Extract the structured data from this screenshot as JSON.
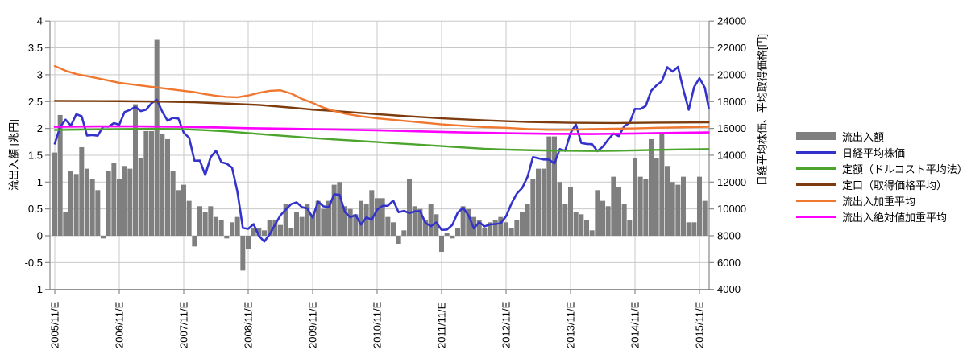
{
  "chart_data": {
    "type": "bar+line combo",
    "title": "",
    "left_axis": {
      "label": "流出入額 [兆円]",
      "min": -1,
      "max": 4,
      "tick_step": 0.5,
      "tick_labels": [
        "4",
        "3.5",
        "3",
        "2.5",
        "2",
        "1.5",
        "1",
        "0.5",
        "0",
        "-0.5",
        "-1"
      ]
    },
    "right_axis": {
      "label": "日経平均株価、平均取得価格[円]",
      "min": 4000,
      "max": 24000,
      "tick_step": 2000,
      "tick_labels": [
        "24000",
        "22000",
        "20000",
        "18000",
        "16000",
        "14000",
        "12000",
        "10000",
        "8000",
        "6000",
        "4000"
      ]
    },
    "x_axis": {
      "tick_labels": [
        "2005/11/E",
        "2006/11/E",
        "2007/11/E",
        "2008/11/E",
        "2009/11/E",
        "2010/11/E",
        "2011/11/E",
        "2012/11/E",
        "2013/11/E",
        "2014/11/E",
        "2015/11/E"
      ],
      "tick_month_indices": [
        0,
        12,
        24,
        36,
        48,
        60,
        72,
        84,
        96,
        108,
        120
      ],
      "months_per_tick": 12
    },
    "grid_on": true,
    "legend_position": "right",
    "legend": [
      {
        "label": "流出入額",
        "swatch": "bar",
        "color": "#7F7F7F"
      },
      {
        "label": "日経平均株価",
        "swatch": "line",
        "color": "#3333CC"
      },
      {
        "label": "定額（ドルコスト平均法）",
        "swatch": "line",
        "color": "#4CA42C"
      },
      {
        "label": "定口（取得価格平均）",
        "swatch": "line",
        "color": "#7D3C0E"
      },
      {
        "label": "流出入加重平均",
        "swatch": "line",
        "color": "#F0772F"
      },
      {
        "label": "流出入絶対値加重平均",
        "swatch": "line",
        "color": "#FF00FF"
      }
    ],
    "bar_series": {
      "name": "流出入額",
      "axis": "left",
      "unit": "兆円",
      "color": "#7F7F7F",
      "values": [
        1.55,
        2.25,
        0.45,
        1.2,
        1.15,
        1.65,
        1.25,
        1.05,
        0.85,
        -0.05,
        1.2,
        1.35,
        1.05,
        1.3,
        1.25,
        2.45,
        1.45,
        1.95,
        1.95,
        3.65,
        1.9,
        1.8,
        1.2,
        0.85,
        0.95,
        0.65,
        -0.2,
        0.55,
        0.45,
        0.55,
        0.35,
        0.3,
        -0.05,
        0.25,
        0.35,
        -0.65,
        -0.25,
        0.15,
        0.15,
        0.1,
        0.3,
        0.3,
        0.2,
        0.6,
        0.15,
        0.45,
        0.35,
        0.6,
        0.4,
        0.65,
        0.5,
        0.65,
        0.95,
        1.0,
        0.55,
        0.5,
        0.4,
        0.65,
        0.6,
        0.85,
        0.7,
        0.7,
        0.35,
        0.25,
        -0.15,
        0.1,
        1.05,
        0.55,
        0.5,
        0.3,
        0.6,
        0.4,
        -0.3,
        0.05,
        -0.05,
        0.15,
        0.55,
        0.5,
        0.35,
        0.3,
        0.15,
        0.25,
        0.3,
        0.35,
        0.25,
        0.15,
        0.3,
        0.45,
        0.6,
        1.05,
        1.25,
        1.25,
        1.85,
        1.85,
        1.0,
        0.6,
        0.9,
        0.45,
        0.4,
        0.3,
        0.1,
        0.85,
        0.65,
        0.55,
        1.1,
        0.9,
        0.6,
        0.3,
        1.45,
        1.1,
        1.05,
        1.8,
        1.45,
        1.9,
        1.3,
        1.0,
        0.95,
        1.1,
        0.25,
        0.25,
        1.1,
        0.65
      ]
    },
    "line_series": [
      {
        "name": "日経平均株価",
        "axis": "right",
        "color": "#3333CC",
        "width": 2.6,
        "values": [
          14872,
          16111,
          16649,
          16205,
          17060,
          16906,
          15467,
          15505,
          15457,
          16141,
          16128,
          16399,
          16274,
          17226,
          17383,
          17604,
          17288,
          17400,
          17876,
          18138,
          17249,
          16569,
          16786,
          16738,
          15681,
          15308,
          13592,
          13603,
          12526,
          13850,
          14339,
          13481,
          13377,
          13073,
          11260,
          8577,
          8512,
          8860,
          7994,
          7568,
          8110,
          8828,
          9523,
          9958,
          10357,
          10493,
          10133,
          10035,
          9346,
          10546,
          10198,
          10126,
          11090,
          11057,
          9769,
          9383,
          9537,
          8824,
          9369,
          9202,
          9937,
          10229,
          10238,
          10624,
          9755,
          9850,
          9694,
          9816,
          9833,
          8955,
          8700,
          8988,
          8435,
          8455,
          8803,
          9723,
          10084,
          9521,
          8543,
          9007,
          8695,
          8840,
          8870,
          8928,
          9446,
          10395,
          11139,
          11559,
          12398,
          13861,
          13775,
          13677,
          13668,
          13389,
          14456,
          14328,
          15662,
          16291,
          14915,
          14841,
          14828,
          14304,
          14632,
          15162,
          15621,
          15425,
          16174,
          16414,
          17460,
          17451,
          17674,
          18798,
          19207,
          19520,
          20563,
          20236,
          20585,
          18890,
          17388,
          19083,
          19747,
          19034,
          17518
        ]
      },
      {
        "name": "定額（ドルコスト平均法）",
        "axis": "right",
        "color": "#4CA42C",
        "width": 2.4,
        "months": [
          0,
          6,
          12,
          18,
          24,
          28,
          32,
          36,
          40,
          44,
          48,
          52,
          56,
          60,
          64,
          68,
          72,
          76,
          80,
          84,
          88,
          92,
          96,
          100,
          104,
          108,
          112,
          116,
          122
        ],
        "values": [
          15880,
          15920,
          15950,
          15970,
          15940,
          15870,
          15780,
          15650,
          15520,
          15400,
          15280,
          15180,
          15080,
          14980,
          14880,
          14780,
          14680,
          14580,
          14480,
          14420,
          14380,
          14350,
          14330,
          14320,
          14330,
          14360,
          14400,
          14430,
          14460
        ]
      },
      {
        "name": "定口（取得価格平均）",
        "axis": "right",
        "color": "#7D3C0E",
        "width": 2.4,
        "months": [
          0,
          12,
          20,
          26,
          32,
          38,
          44,
          48,
          52,
          57,
          64,
          72,
          80,
          88,
          96,
          104,
          112,
          122
        ],
        "values": [
          18050,
          18030,
          18000,
          17950,
          17850,
          17750,
          17550,
          17400,
          17300,
          17150,
          16950,
          16750,
          16600,
          16480,
          16420,
          16400,
          16430,
          16450
        ]
      },
      {
        "name": "流出入加重平均",
        "axis": "right",
        "color": "#F0772F",
        "width": 2.4,
        "months": [
          0,
          2,
          4,
          6,
          9,
          12,
          15,
          18,
          21,
          24,
          26,
          28,
          30,
          32,
          34,
          36,
          38,
          40,
          42,
          44,
          46,
          48,
          50,
          52,
          54,
          57,
          60,
          64,
          68,
          72,
          76,
          80,
          84,
          88,
          92,
          96,
          100,
          104,
          108,
          112,
          116,
          122
        ],
        "values": [
          20650,
          20300,
          20050,
          19900,
          19650,
          19400,
          19250,
          19100,
          18950,
          18800,
          18700,
          18550,
          18430,
          18350,
          18320,
          18450,
          18650,
          18800,
          18840,
          18600,
          18200,
          17900,
          17550,
          17300,
          17100,
          16900,
          16750,
          16600,
          16450,
          16300,
          16200,
          16100,
          16050,
          15950,
          15900,
          15900,
          15950,
          15980,
          16000,
          16050,
          16080,
          16120
        ]
      },
      {
        "name": "流出入絶対値加重平均",
        "axis": "right",
        "color": "#FF00FF",
        "width": 2.6,
        "months": [
          0,
          8,
          16,
          24,
          30,
          36,
          44,
          52,
          60,
          68,
          76,
          84,
          92,
          100,
          108,
          116,
          122
        ],
        "values": [
          16120,
          16150,
          16150,
          16120,
          16080,
          16020,
          15970,
          15920,
          15860,
          15780,
          15700,
          15640,
          15600,
          15580,
          15620,
          15670,
          15700
        ]
      }
    ],
    "colors": {
      "grid": "#C9C9C9",
      "axis": "#898989",
      "text": "#000000",
      "background": "#FFFFFF"
    }
  }
}
